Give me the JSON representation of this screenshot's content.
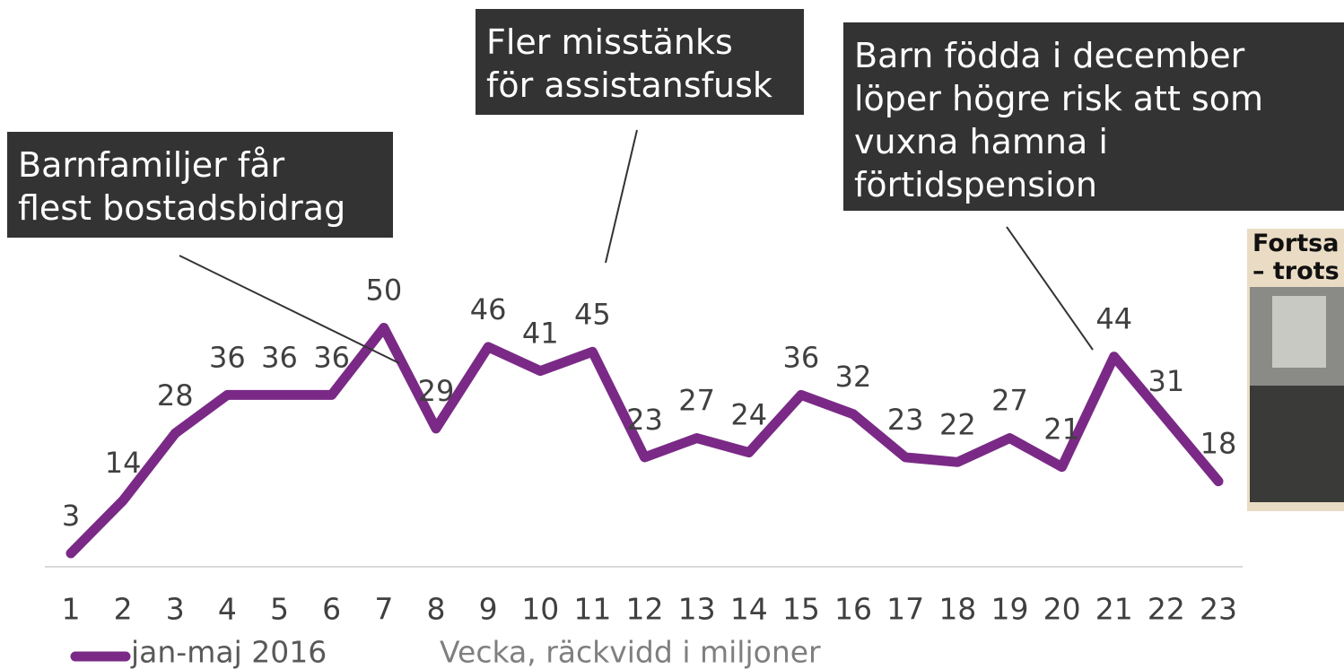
{
  "chart_data": {
    "type": "line",
    "categories": [
      "1",
      "2",
      "3",
      "4",
      "5",
      "6",
      "7",
      "8",
      "9",
      "10",
      "11",
      "12",
      "13",
      "14",
      "15",
      "16",
      "17",
      "18",
      "19",
      "20",
      "21",
      "22",
      "23"
    ],
    "series": [
      {
        "name": "jan-maj 2016",
        "color": "#7a2a86",
        "values": [
          3,
          14,
          28,
          36,
          36,
          36,
          50,
          29,
          46,
          41,
          45,
          23,
          27,
          24,
          36,
          32,
          23,
          22,
          27,
          21,
          44,
          31,
          18
        ]
      }
    ],
    "ylim": [
      0,
      60
    ],
    "xlabel": "Vecka, räckvidd i miljoner",
    "annotations": [
      {
        "lines": [
          "Barnfamiljer får",
          "flest bostadsbidrag"
        ]
      },
      {
        "lines": [
          "Fler misstänks",
          "för assistansfusk"
        ]
      },
      {
        "lines": [
          "Barn födda i december",
          "löper högre risk att som",
          "vuxna hamna i",
          "förtidspension"
        ]
      }
    ],
    "inset_texts": [
      "Fortsa",
      "– trots"
    ]
  }
}
